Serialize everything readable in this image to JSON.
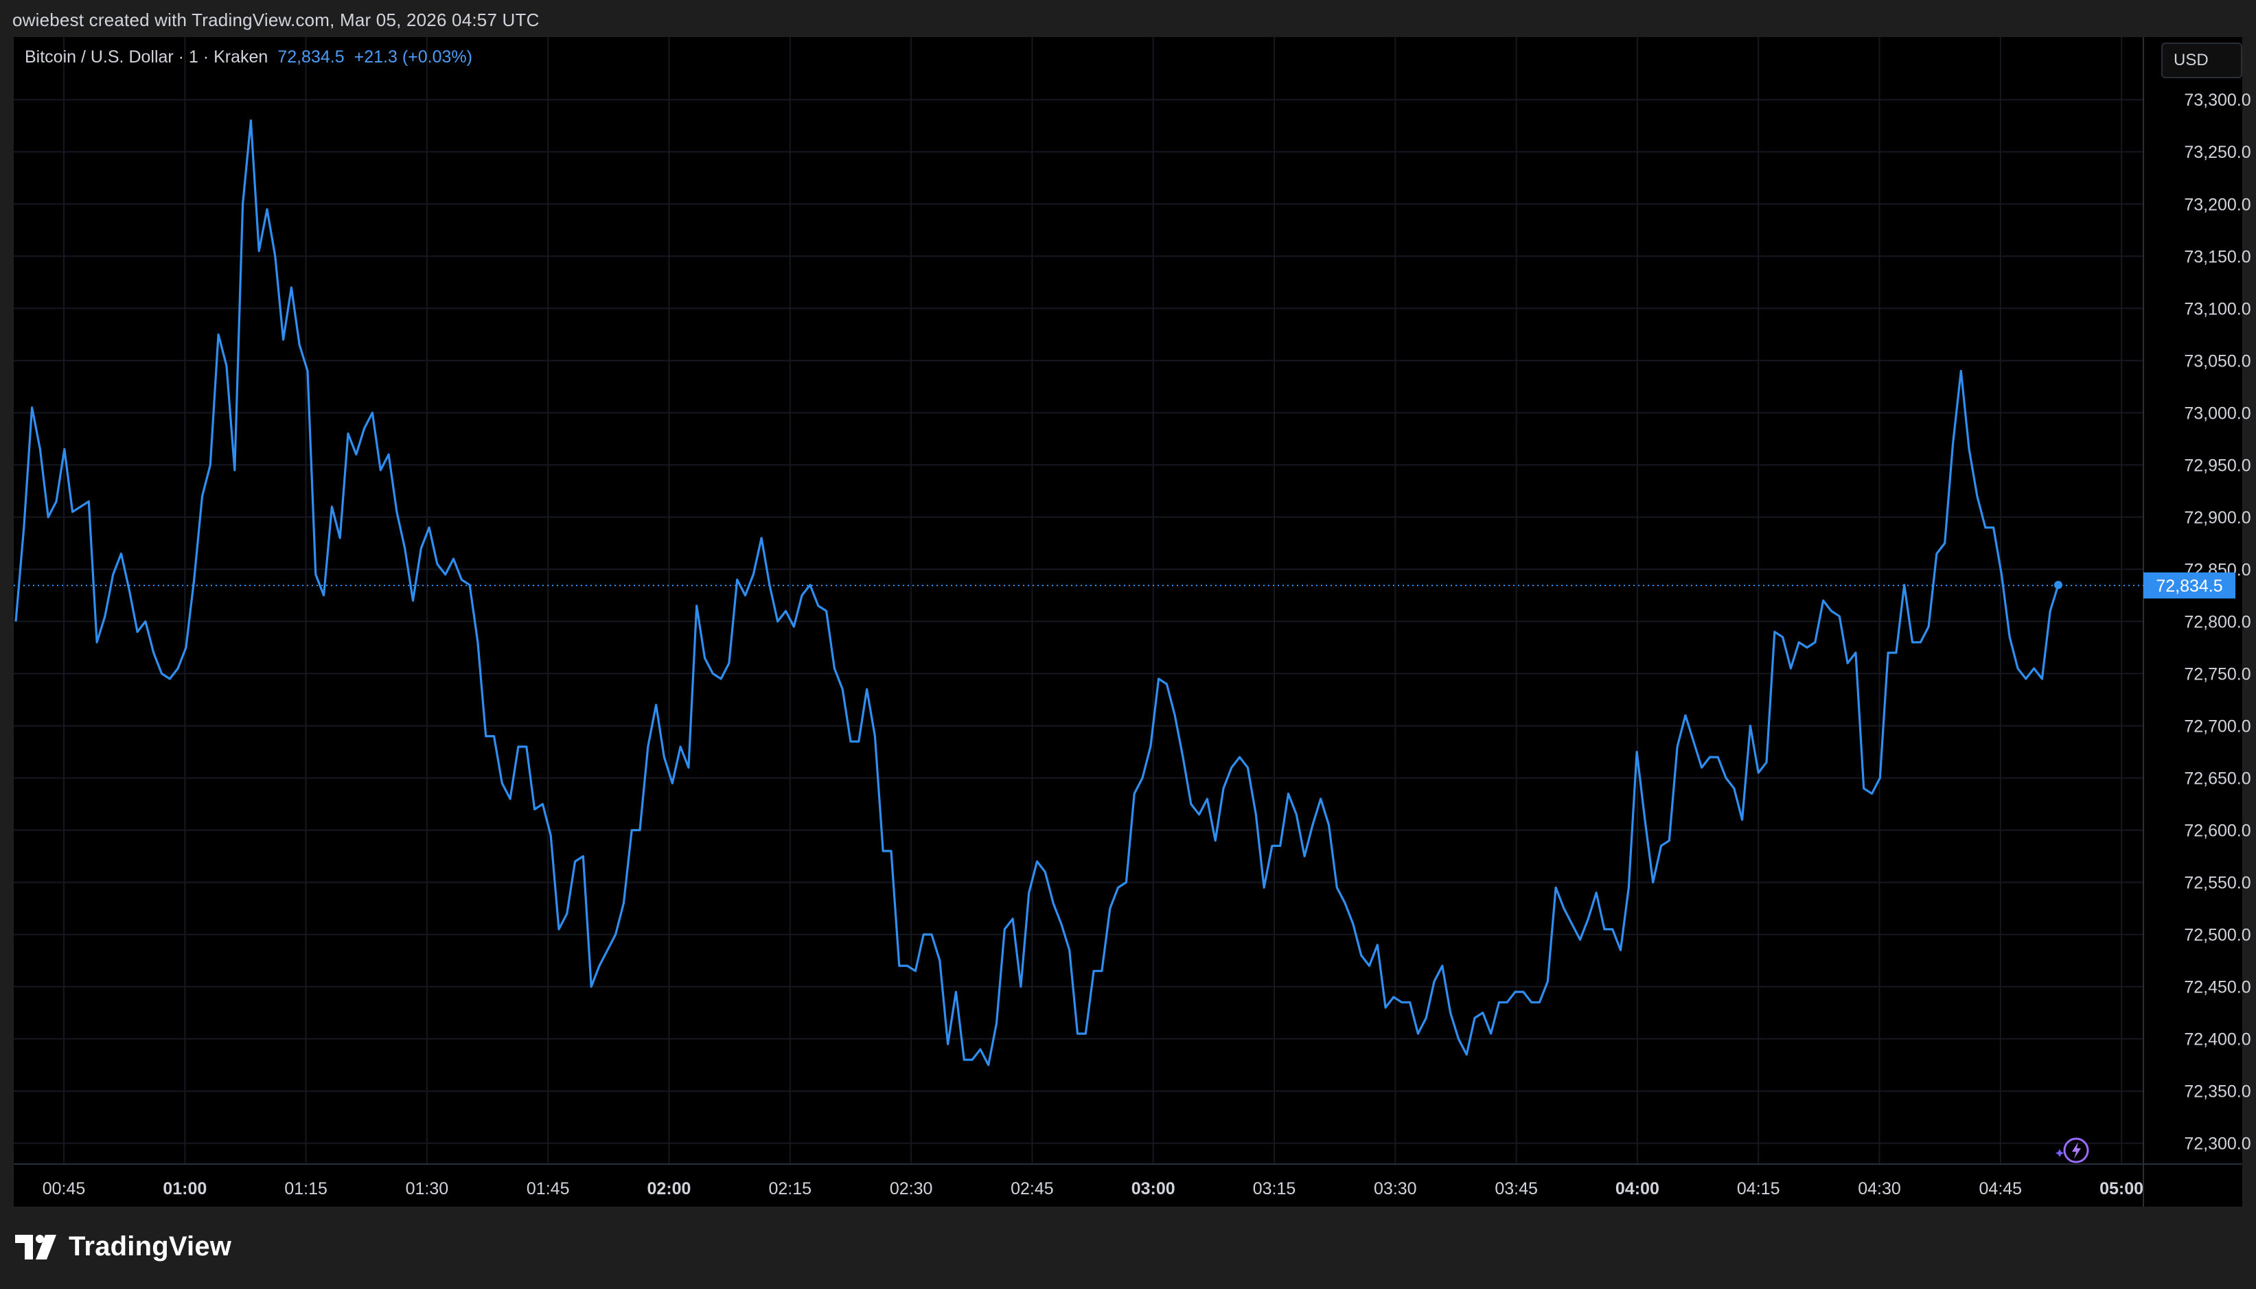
{
  "header": {
    "text": "owiebest created with TradingView.com, Mar 05, 2026 04:57 UTC"
  },
  "legend": {
    "symbol": "Bitcoin / U.S. Dollar · 1 · Kraken",
    "price": "72,834.5",
    "change": "+21.3 (+0.03%)"
  },
  "currency": {
    "label": "USD"
  },
  "footer": {
    "brand": "TradingView"
  },
  "colors": {
    "line": "#2f8ef0",
    "background": "#000000",
    "price_label_bg": "#2f8ef0",
    "accent_text": "#4c9bf5"
  },
  "icons": {
    "spark": "sparkle-lightning-icon",
    "logo": "tradingview-logo-icon"
  },
  "chart_data": {
    "type": "line",
    "series": [
      {
        "values": [
          72800,
          72890,
          73005,
          72965,
          72900,
          72915,
          72965,
          72905,
          72910,
          72915,
          72780,
          72805,
          72845,
          72865,
          72830,
          72790,
          72800,
          72770,
          72750,
          72745,
          72755,
          72775,
          72840,
          72920,
          72950,
          73075,
          73045,
          72945,
          73200,
          73280,
          73155,
          73195,
          73150,
          73070,
          73120,
          73065,
          73040,
          72845,
          72825,
          72910,
          72880,
          72980,
          72960,
          72985,
          73000,
          72945,
          72960,
          72905,
          72870,
          72820,
          72870,
          72890,
          72855,
          72845,
          72860,
          72840,
          72835,
          72780,
          72690,
          72690,
          72645,
          72630,
          72680,
          72680,
          72620,
          72625,
          72595,
          72505,
          72520,
          72570,
          72575,
          72450,
          72470,
          72485,
          72500,
          72530,
          72600,
          72600,
          72680,
          72720,
          72670,
          72645,
          72680,
          72660,
          72815,
          72765,
          72750,
          72745,
          72760,
          72840,
          72825,
          72845,
          72880,
          72835,
          72800,
          72810,
          72795,
          72825,
          72835,
          72815,
          72810,
          72755,
          72735,
          72685,
          72685,
          72735,
          72690,
          72580,
          72580,
          72470,
          72470,
          72465,
          72500,
          72500,
          72475,
          72395,
          72445,
          72380,
          72380,
          72390,
          72375,
          72415,
          72505,
          72515,
          72450,
          72540,
          72570,
          72560,
          72530,
          72510,
          72485,
          72405,
          72405,
          72465,
          72465,
          72525,
          72545,
          72550,
          72635,
          72650,
          72680,
          72745,
          72740,
          72710,
          72670,
          72625,
          72615,
          72630,
          72590,
          72640,
          72660,
          72670,
          72660,
          72615,
          72545,
          72585,
          72585,
          72635,
          72615,
          72575,
          72605,
          72630,
          72605,
          72545,
          72530,
          72510,
          72480,
          72470,
          72490,
          72430,
          72440,
          72435,
          72435,
          72405,
          72420,
          72455,
          72470,
          72425,
          72400,
          72385,
          72420,
          72425,
          72405,
          72435,
          72435,
          72445,
          72445,
          72435,
          72435,
          72455,
          72545,
          72525,
          72510,
          72495,
          72515,
          72540,
          72505,
          72505,
          72485,
          72545,
          72675,
          72610,
          72550,
          72585,
          72590,
          72680,
          72710,
          72685,
          72660,
          72670,
          72670,
          72650,
          72640,
          72610,
          72700,
          72655,
          72665,
          72790,
          72785,
          72755,
          72780,
          72775,
          72780,
          72820,
          72810,
          72805,
          72760,
          72770,
          72640,
          72635,
          72650,
          72770,
          72770,
          72835,
          72780,
          72780,
          72795,
          72865,
          72875,
          72970,
          73040,
          72965,
          72920,
          72890,
          72890,
          72845,
          72785,
          72755,
          72745,
          72755,
          72745,
          72810,
          72835
        ]
      }
    ],
    "y_ticks": [
      72300,
      72350,
      72400,
      72450,
      72500,
      72550,
      72600,
      72650,
      72700,
      72750,
      72800,
      72850,
      72900,
      72950,
      73000,
      73050,
      73100,
      73150,
      73200,
      73250,
      73300
    ],
    "y_tick_labels": [
      "72,300.0",
      "72,350.0",
      "72,400.0",
      "72,450.0",
      "72,500.0",
      "72,550.0",
      "72,600.0",
      "72,650.0",
      "72,700.0",
      "72,750.0",
      "72,800.0",
      "72,850.0",
      "72,900.0",
      "72,950.0",
      "73,000.0",
      "73,050.0",
      "73,100.0",
      "73,150.0",
      "73,200.0",
      "73,250.0",
      "73,300.0"
    ],
    "x_ticks": [
      {
        "label": "00:45",
        "bold": false
      },
      {
        "label": "01:00",
        "bold": true
      },
      {
        "label": "01:15",
        "bold": false
      },
      {
        "label": "01:30",
        "bold": false
      },
      {
        "label": "01:45",
        "bold": false
      },
      {
        "label": "02:00",
        "bold": true
      },
      {
        "label": "02:15",
        "bold": false
      },
      {
        "label": "02:30",
        "bold": false
      },
      {
        "label": "02:45",
        "bold": false
      },
      {
        "label": "03:00",
        "bold": true
      },
      {
        "label": "03:15",
        "bold": false
      },
      {
        "label": "03:30",
        "bold": false
      },
      {
        "label": "03:45",
        "bold": false
      },
      {
        "label": "04:00",
        "bold": true
      },
      {
        "label": "04:15",
        "bold": false
      },
      {
        "label": "04:30",
        "bold": false
      },
      {
        "label": "04:45",
        "bold": false
      },
      {
        "label": "05:00",
        "bold": true
      }
    ],
    "last_price": 72834.5,
    "last_price_label": "72,834.5",
    "y_range": [
      72280,
      73360
    ],
    "grid": true
  }
}
